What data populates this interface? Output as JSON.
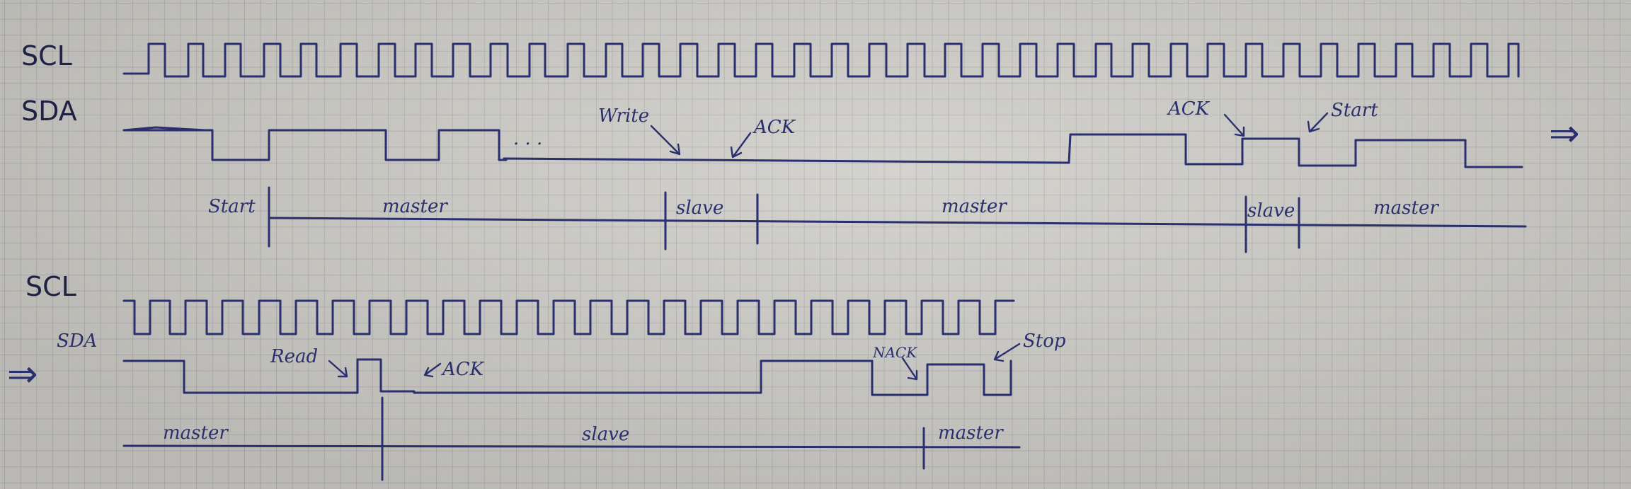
{
  "diagram1": {
    "scl_label": "SCL",
    "sda_label": "SDA",
    "annotations": {
      "write": "Write",
      "ack1": "ACK",
      "ack2": "ACK",
      "start2": "Start",
      "dots": ". . ."
    },
    "segments": {
      "start": "Start",
      "master1": "master",
      "slave1": "slave",
      "master2": "master",
      "slave2": "slave",
      "master3": "master"
    },
    "continue_arrow": "⇒"
  },
  "diagram2": {
    "scl_label": "SCL",
    "sda_label": "SDA",
    "continue_arrow": "⇒",
    "annotations": {
      "read": "Read",
      "ack": "ACK",
      "nack": "NACK",
      "stop": "Stop"
    },
    "segments": {
      "master1": "master",
      "slave": "slave",
      "master2": "master"
    }
  }
}
